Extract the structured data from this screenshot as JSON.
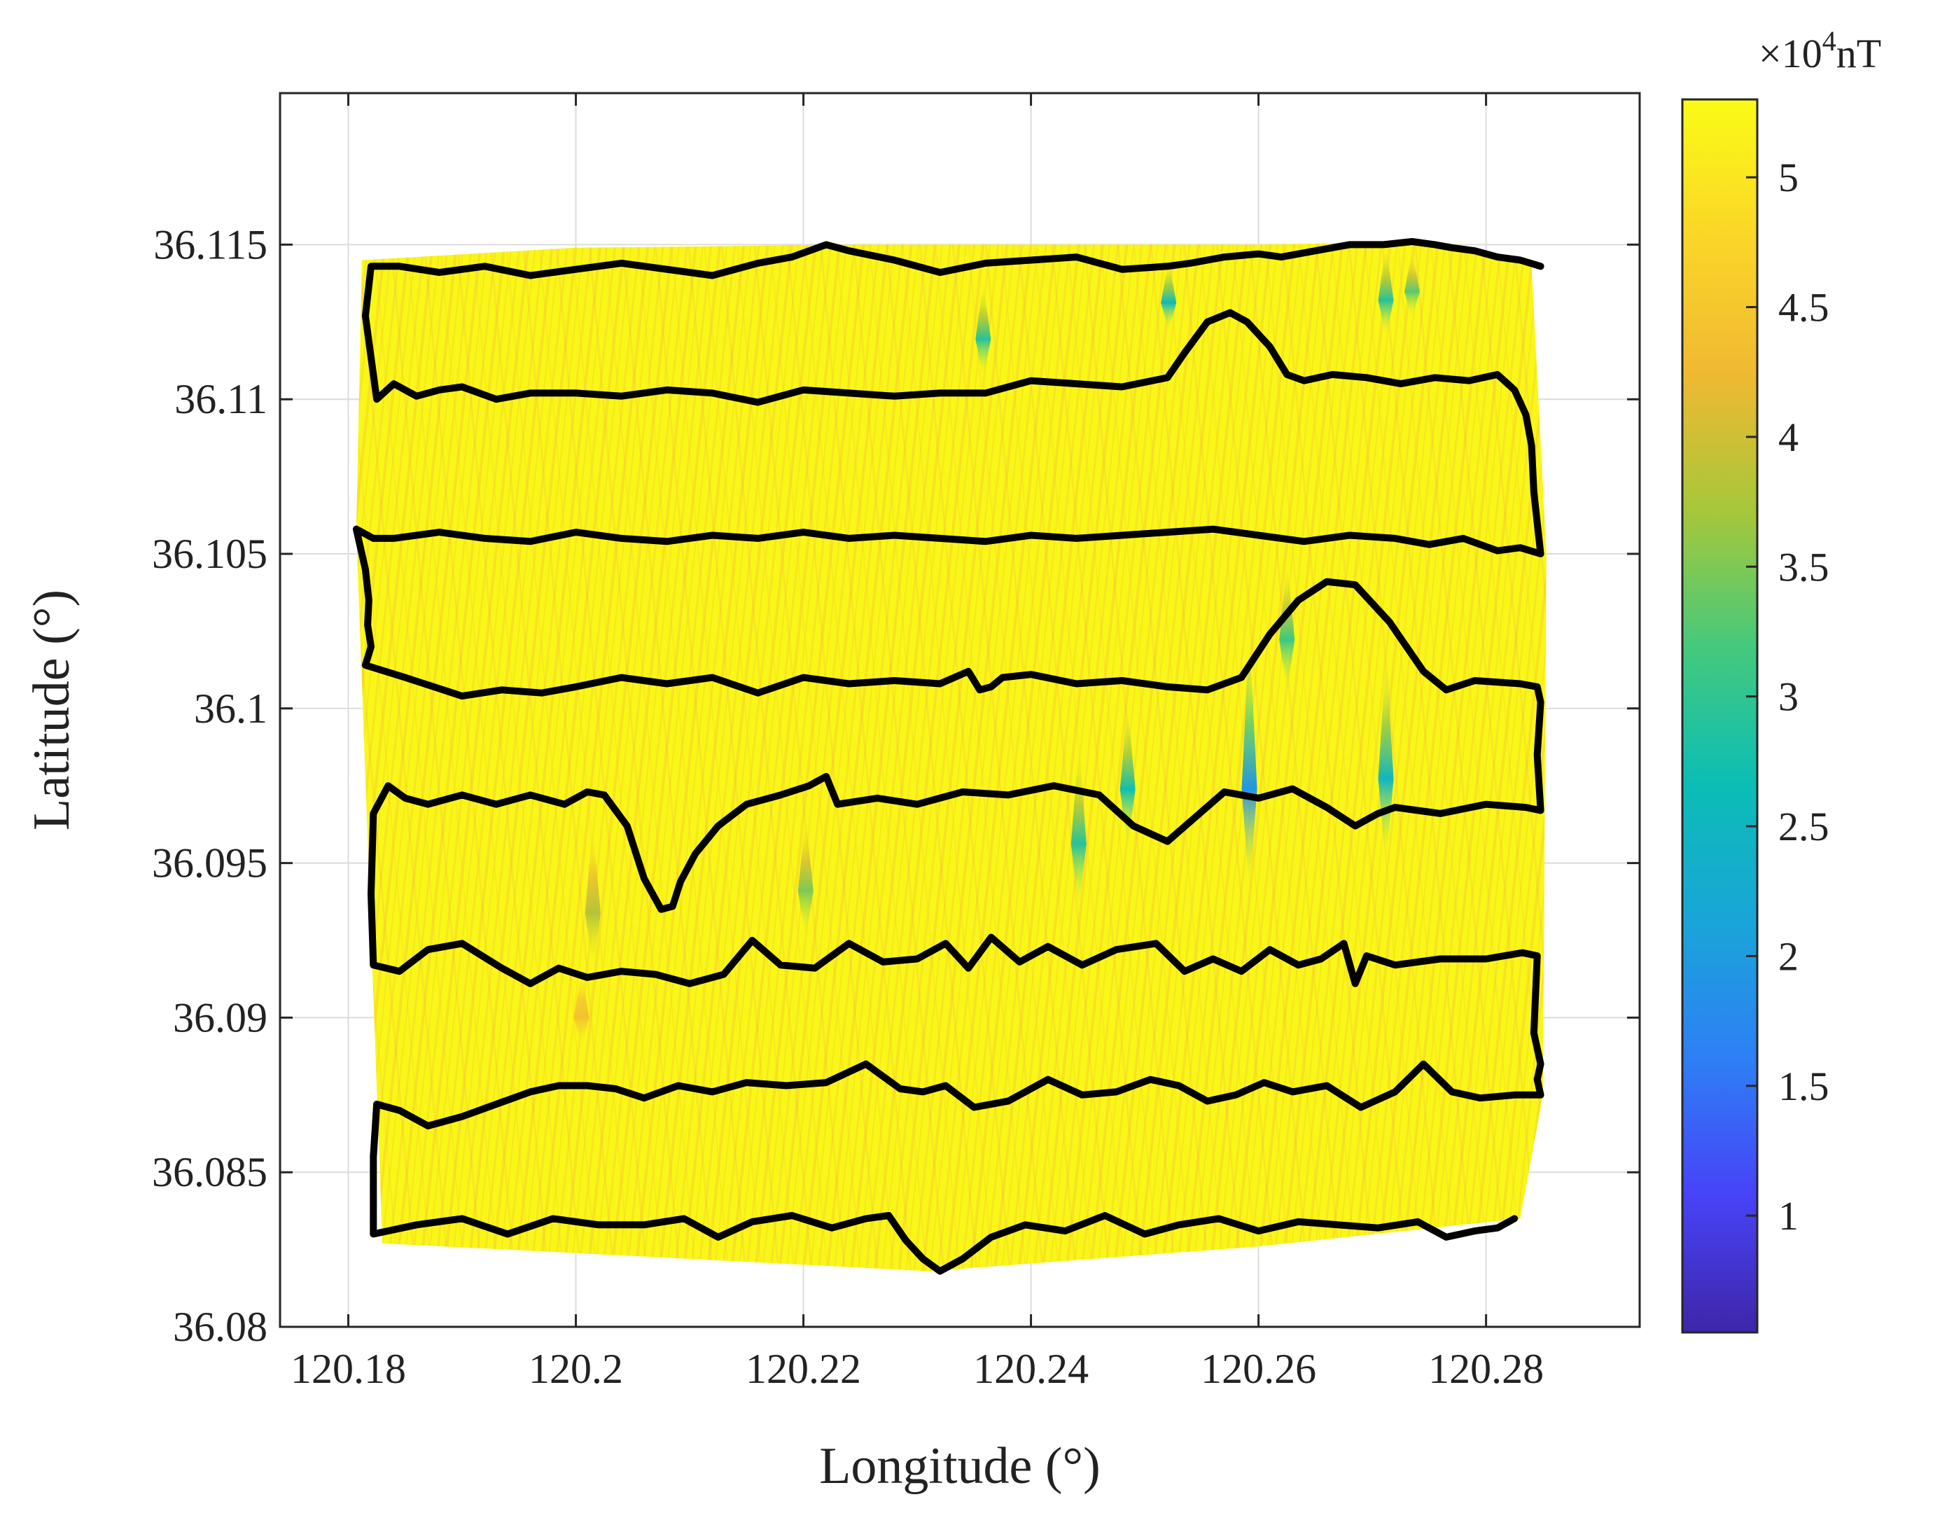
{
  "chart_data": {
    "type": "heatmap",
    "title": "",
    "xlabel": "Longitude (°)",
    "ylabel": "Latitude (°)",
    "xlim": [
      120.174,
      120.2935
    ],
    "ylim": [
      36.08,
      36.1199
    ],
    "xticks": [
      120.18,
      120.2,
      120.22,
      120.24,
      120.26,
      120.28
    ],
    "xtick_labels": [
      "120.18",
      "120.2",
      "120.22",
      "120.24",
      "120.26",
      "120.28"
    ],
    "yticks": [
      36.08,
      36.085,
      36.09,
      36.095,
      36.1,
      36.105,
      36.11,
      36.115
    ],
    "ytick_labels": [
      "36.08",
      "36.085",
      "36.09",
      "36.095",
      "36.1",
      "36.105",
      "36.11",
      "36.115"
    ],
    "grid": true,
    "colorbar": {
      "range": [
        0.55,
        5.3
      ],
      "ticks": [
        1,
        1.5,
        2,
        2.5,
        3,
        3.5,
        4,
        4.5,
        5
      ],
      "tick_labels": [
        "1",
        "1.5",
        "2",
        "2.5",
        "3",
        "3.5",
        "4",
        "4.5",
        "5"
      ],
      "multiplier_prefix": "×10",
      "multiplier_exponent": "4",
      "unit": "nT",
      "colormap": [
        "#3e26a8",
        "#4743f7",
        "#2e7ff5",
        "#1aa5d8",
        "#0bbdb5",
        "#45c97c",
        "#a7c73a",
        "#f0b932",
        "#fbd628",
        "#f9fb15"
      ]
    },
    "field": {
      "background_value": 5.25,
      "coverage_polygon": [
        [
          120.1812,
          36.1145
        ],
        [
          120.2,
          36.1149
        ],
        [
          120.225,
          36.115
        ],
        [
          120.26,
          36.115
        ],
        [
          120.2755,
          36.1151
        ],
        [
          120.284,
          36.1143
        ],
        [
          120.2853,
          36.105
        ],
        [
          120.285,
          36.0875
        ],
        [
          120.283,
          36.0835
        ],
        [
          120.26,
          36.0826
        ],
        [
          120.231,
          36.0818
        ],
        [
          120.21,
          36.0822
        ],
        [
          120.183,
          36.0827
        ],
        [
          120.1807,
          36.1058
        ]
      ],
      "anomalies": [
        {
          "lon": 120.2358,
          "lat_top": 36.1138,
          "lat_bottom": 36.1107,
          "min_value": 2.9
        },
        {
          "lon": 120.2521,
          "lat_top": 36.1145,
          "lat_bottom": 36.1122,
          "min_value": 2.6
        },
        {
          "lon": 120.2712,
          "lat_top": 36.115,
          "lat_bottom": 36.112,
          "min_value": 2.9
        },
        {
          "lon": 120.2735,
          "lat_top": 36.1148,
          "lat_bottom": 36.1126,
          "min_value": 3.3
        },
        {
          "lon": 120.2592,
          "lat_top": 36.1025,
          "lat_bottom": 36.094,
          "min_value": 1.9
        },
        {
          "lon": 120.2625,
          "lat_top": 36.1048,
          "lat_bottom": 36.1005,
          "min_value": 3.1
        },
        {
          "lon": 120.2485,
          "lat_top": 36.1002,
          "lat_bottom": 36.0955,
          "min_value": 2.7
        },
        {
          "lon": 120.2442,
          "lat_top": 36.0988,
          "lat_bottom": 36.0935,
          "min_value": 2.9
        },
        {
          "lon": 120.2712,
          "lat_top": 36.1018,
          "lat_bottom": 36.095,
          "min_value": 2.5
        },
        {
          "lon": 120.2202,
          "lat_top": 36.0965,
          "lat_bottom": 36.0925,
          "min_value": 3.5
        },
        {
          "lon": 120.2015,
          "lat_top": 36.0962,
          "lat_bottom": 36.0915,
          "min_value": 3.8
        },
        {
          "lon": 120.2005,
          "lat_top": 36.0915,
          "lat_bottom": 36.089,
          "min_value": 4.4
        }
      ]
    },
    "series": [
      {
        "name": "survey track",
        "color": "#000000",
        "lon": [
          120.2848,
          120.283,
          120.281,
          120.279,
          120.277,
          120.2755,
          120.2735,
          120.271,
          120.268,
          120.265,
          120.262,
          120.26,
          120.257,
          120.254,
          120.252,
          120.248,
          120.244,
          120.24,
          120.236,
          120.232,
          120.228,
          120.224,
          120.222,
          120.219,
          120.216,
          120.212,
          120.208,
          120.204,
          120.2,
          120.196,
          120.192,
          120.188,
          120.1845,
          120.182,
          120.1815,
          120.1825,
          120.184,
          120.186,
          120.188,
          120.19,
          120.193,
          120.196,
          120.2,
          120.204,
          120.208,
          120.212,
          120.216,
          120.22,
          120.224,
          120.228,
          120.232,
          120.236,
          120.24,
          120.244,
          120.248,
          120.252,
          120.2535,
          120.2555,
          120.2575,
          120.259,
          120.261,
          120.2625,
          120.264,
          120.2665,
          120.2695,
          120.2725,
          120.2755,
          120.2785,
          120.281,
          120.2825,
          120.2835,
          120.284,
          120.2842,
          120.2845,
          120.2848,
          120.283,
          120.281,
          120.278,
          120.275,
          120.272,
          120.268,
          120.264,
          120.26,
          120.256,
          120.252,
          120.248,
          120.244,
          120.24,
          120.236,
          120.232,
          120.228,
          120.224,
          120.22,
          120.216,
          120.212,
          120.208,
          120.204,
          120.2,
          120.196,
          120.192,
          120.188,
          120.184,
          120.1822,
          120.1807,
          120.1815,
          120.1818,
          120.1817,
          120.182,
          120.1815,
          120.185,
          120.19,
          120.1935,
          120.197,
          120.2,
          120.204,
          120.208,
          120.212,
          120.216,
          120.22,
          120.224,
          120.228,
          120.232,
          120.2345,
          120.2355,
          120.2365,
          120.2375,
          120.24,
          120.244,
          120.248,
          120.252,
          120.2555,
          120.2585,
          120.261,
          120.2635,
          120.266,
          120.2685,
          120.2715,
          120.2745,
          120.2765,
          120.279,
          120.283,
          120.2845,
          120.2848,
          120.2845,
          120.2848,
          120.2835,
          120.28,
          120.276,
          120.272,
          120.2705,
          120.2685,
          120.266,
          120.263,
          120.26,
          120.257,
          120.2545,
          120.252,
          120.249,
          120.246,
          120.242,
          120.238,
          120.234,
          120.23,
          120.2265,
          120.223,
          120.222,
          120.2205,
          120.218,
          120.215,
          120.2125,
          120.2105,
          120.2092,
          120.2085,
          120.2075,
          120.206,
          120.2045,
          120.2035,
          120.2025,
          120.201,
          120.199,
          120.196,
          120.193,
          120.19,
          120.187,
          120.185,
          120.1835,
          120.1822,
          120.182,
          120.1822,
          120.1845,
          120.187,
          120.19,
          120.1935,
          120.196,
          120.1985,
          120.201,
          120.204,
          120.207,
          120.21,
          120.213,
          120.2155,
          120.218,
          120.221,
          120.224,
          120.227,
          120.23,
          120.2325,
          120.2345,
          120.2365,
          120.239,
          120.2415,
          120.2445,
          120.2475,
          120.251,
          120.2535,
          120.256,
          120.2585,
          120.261,
          120.2635,
          120.2655,
          120.2675,
          120.2685,
          120.2695,
          120.272,
          120.276,
          120.28,
          120.2832,
          120.2845,
          120.2842,
          120.2848,
          120.2845,
          120.2848,
          120.2825,
          120.2795,
          120.277,
          120.2745,
          120.272,
          120.269,
          120.266,
          120.263,
          120.2605,
          120.258,
          120.2555,
          120.253,
          120.2505,
          120.2475,
          120.2445,
          120.2415,
          120.238,
          120.235,
          120.2325,
          120.2305,
          120.2285,
          120.2255,
          120.222,
          120.2185,
          120.215,
          120.212,
          120.209,
          120.206,
          120.2035,
          120.201,
          120.1985,
          120.196,
          120.193,
          120.19,
          120.187,
          120.1845,
          120.1825,
          120.1822,
          120.1822,
          120.186,
          120.19,
          120.194,
          120.198,
          120.202,
          120.206,
          120.2095,
          120.2125,
          120.2155,
          120.219,
          120.2225,
          120.2255,
          120.2275,
          120.229,
          120.2305,
          120.232,
          120.234,
          120.2365,
          120.2395,
          120.243,
          120.2465,
          120.25,
          120.253,
          120.2565,
          120.26,
          120.2635,
          120.267,
          120.2705,
          120.274,
          120.2765,
          120.279,
          120.281,
          120.2825
        ],
        "lat": [
          36.1143,
          36.1145,
          36.1146,
          36.1148,
          36.1149,
          36.115,
          36.1151,
          36.115,
          36.115,
          36.1148,
          36.1146,
          36.1147,
          36.1146,
          36.1144,
          36.1143,
          36.1142,
          36.1146,
          36.1145,
          36.1144,
          36.1141,
          36.1145,
          36.1148,
          36.115,
          36.1146,
          36.1144,
          36.114,
          36.1142,
          36.1144,
          36.1142,
          36.114,
          36.1143,
          36.1141,
          36.1143,
          36.1143,
          36.1127,
          36.11,
          36.1105,
          36.1101,
          36.1103,
          36.1104,
          36.11,
          36.1102,
          36.1102,
          36.1101,
          36.1103,
          36.1102,
          36.1099,
          36.1103,
          36.1102,
          36.1101,
          36.1102,
          36.1102,
          36.1106,
          36.1105,
          36.1104,
          36.1107,
          36.1115,
          36.1125,
          36.1128,
          36.1125,
          36.1117,
          36.1108,
          36.1106,
          36.1108,
          36.1107,
          36.1105,
          36.1107,
          36.1106,
          36.1108,
          36.1103,
          36.1095,
          36.1085,
          36.107,
          36.106,
          36.105,
          36.1052,
          36.1051,
          36.1055,
          36.1053,
          36.1055,
          36.1056,
          36.1054,
          36.1056,
          36.1058,
          36.1057,
          36.1056,
          36.1055,
          36.1056,
          36.1054,
          36.1055,
          36.1056,
          36.1055,
          36.1057,
          36.1055,
          36.1056,
          36.1054,
          36.1055,
          36.1057,
          36.1054,
          36.1055,
          36.1057,
          36.1055,
          36.1055,
          36.1058,
          36.1045,
          36.1035,
          36.1027,
          36.102,
          36.1014,
          36.101,
          36.1004,
          36.1006,
          36.1005,
          36.1007,
          36.101,
          36.1008,
          36.101,
          36.1005,
          36.101,
          36.1008,
          36.1009,
          36.1008,
          36.1012,
          36.1006,
          36.1007,
          36.101,
          36.1011,
          36.1008,
          36.1009,
          36.1007,
          36.1006,
          36.101,
          36.1024,
          36.1035,
          36.1041,
          36.104,
          36.1028,
          36.1012,
          36.1006,
          36.1009,
          36.1008,
          36.1007,
          36.1002,
          36.0985,
          36.0967,
          36.0968,
          36.0969,
          36.0966,
          36.0968,
          36.0966,
          36.0962,
          36.0968,
          36.0974,
          36.0971,
          36.0973,
          36.0965,
          36.0957,
          36.0962,
          36.0972,
          36.0975,
          36.0972,
          36.0973,
          36.0969,
          36.0971,
          36.0969,
          36.0978,
          36.0975,
          36.0972,
          36.0969,
          36.0962,
          36.0953,
          36.0944,
          36.0936,
          36.0935,
          36.0945,
          36.0962,
          36.0967,
          36.0972,
          36.0973,
          36.0969,
          36.0972,
          36.0969,
          36.0972,
          36.0969,
          36.0971,
          36.0975,
          36.0966,
          36.094,
          36.0917,
          36.0915,
          36.0922,
          36.0924,
          36.0916,
          36.0911,
          36.0916,
          36.0913,
          36.0915,
          36.0914,
          36.0911,
          36.0914,
          36.0925,
          36.0917,
          36.0916,
          36.0924,
          36.0918,
          36.0919,
          36.0924,
          36.0916,
          36.0926,
          36.0918,
          36.0923,
          36.0917,
          36.0922,
          36.0924,
          36.0915,
          36.0919,
          36.0915,
          36.0922,
          36.0917,
          36.0919,
          36.0924,
          36.0911,
          36.092,
          36.0917,
          36.0919,
          36.0919,
          36.0921,
          36.092,
          36.0895,
          36.0885,
          36.088,
          36.0875,
          36.0875,
          36.0874,
          36.0876,
          36.0885,
          36.0876,
          36.0871,
          36.0878,
          36.0876,
          36.0879,
          36.0875,
          36.0873,
          36.0878,
          36.088,
          36.0876,
          36.0875,
          36.088,
          36.0873,
          36.0871,
          36.0878,
          36.0876,
          36.0877,
          36.0885,
          36.0879,
          36.0878,
          36.0879,
          36.0876,
          36.0878,
          36.0874,
          36.0877,
          36.0878,
          36.0878,
          36.0876,
          36.0872,
          36.0868,
          36.0865,
          36.087,
          36.0872,
          36.0855,
          36.083,
          36.0833,
          36.0835,
          36.083,
          36.0835,
          36.0833,
          36.0833,
          36.0835,
          36.0829,
          36.0834,
          36.0836,
          36.0832,
          36.0835,
          36.0836,
          36.0828,
          36.0822,
          36.0818,
          36.0822,
          36.0829,
          36.0833,
          36.0831,
          36.0836,
          36.083,
          36.0833,
          36.0835,
          36.0831,
          36.0834,
          36.0833,
          36.0832,
          36.0834,
          36.0829,
          36.0831,
          36.0832,
          36.0835
        ]
      }
    ]
  }
}
